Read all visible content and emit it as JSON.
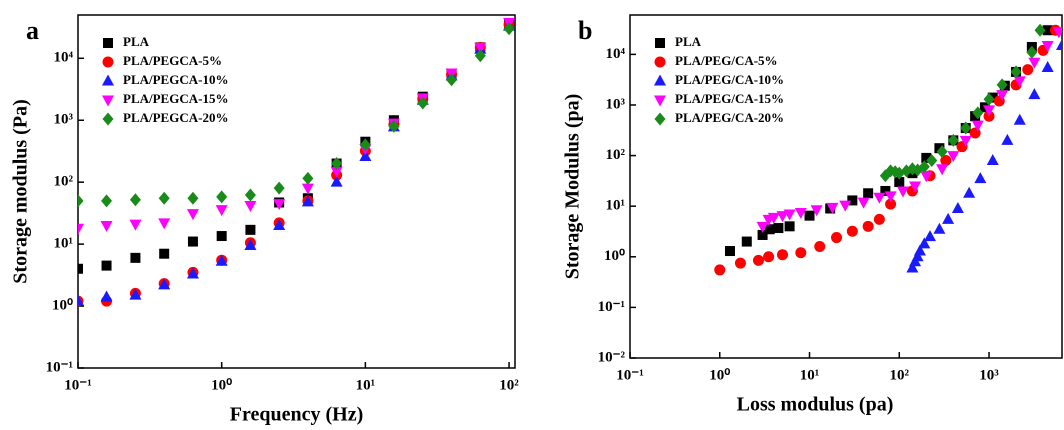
{
  "chart_data": [
    {
      "type": "scatter",
      "label": "a",
      "x_label": "Frequency (Hz)",
      "y_label": "Storage modulus (Pa)",
      "x_scale": "log",
      "y_scale": "log",
      "legend": "upper-left",
      "xlim": [
        0.1,
        110
      ],
      "ylim": [
        0.1,
        50000
      ],
      "xticks": [
        {
          "value": 0.1,
          "label": "10⁻¹"
        },
        {
          "value": 1,
          "label": "10⁰"
        },
        {
          "value": 10,
          "label": "10¹"
        },
        {
          "value": 100,
          "label": "10²"
        }
      ],
      "yticks": [
        {
          "value": 0.1,
          "label": "10⁻¹"
        },
        {
          "value": 1,
          "label": "10⁰"
        },
        {
          "value": 10,
          "label": "10¹"
        },
        {
          "value": 100,
          "label": "10²"
        },
        {
          "value": 1000,
          "label": "10³"
        },
        {
          "value": 10000,
          "label": "10⁴"
        }
      ],
      "x": [
        0.1,
        0.158,
        0.251,
        0.398,
        0.631,
        1,
        1.585,
        2.512,
        3.98,
        6.31,
        10,
        15.8,
        25.1,
        39.8,
        63.1,
        100
      ],
      "series": [
        {
          "name": "PLA",
          "color": "#000000",
          "marker": "square",
          "values": [
            4,
            4.5,
            6,
            7,
            11,
            13.5,
            17,
            47,
            55,
            200,
            450,
            1000,
            2400,
            5500,
            15000,
            35000
          ]
        },
        {
          "name": "PLA/PEGCA-5%",
          "color": "#ff0000",
          "marker": "circle",
          "values": [
            1.2,
            1.2,
            1.6,
            2.3,
            3.5,
            5.5,
            10.5,
            22,
            50,
            130,
            320,
            850,
            2200,
            5500,
            15000,
            35000
          ]
        },
        {
          "name": "PLA/PEGCA-10%",
          "color": "#1a1aff",
          "marker": "triangle-up",
          "values": [
            1.2,
            1.4,
            1.5,
            2.2,
            3.3,
            5.3,
            9.5,
            20,
            48,
            100,
            260,
            780,
            2100,
            5200,
            14000,
            33000
          ]
        },
        {
          "name": "PLA/PEGCA-15%",
          "color": "#ff00ff",
          "marker": "triangle-down",
          "values": [
            18,
            20,
            21,
            22,
            31,
            36,
            42,
            45,
            80,
            150,
            350,
            900,
            2300,
            5800,
            15000,
            38000
          ]
        },
        {
          "name": "PLA/PEGCA-20%",
          "color": "#1a8a1a",
          "marker": "diamond",
          "values": [
            50,
            50,
            52,
            55,
            55,
            58,
            62,
            80,
            115,
            200,
            400,
            800,
            1900,
            4500,
            11000,
            30000
          ]
        }
      ]
    },
    {
      "type": "scatter",
      "label": "b",
      "x_label": "Loss modulus (pa)",
      "y_label": "Storage Modulus (pa)",
      "x_scale": "log",
      "y_scale": "log",
      "legend": "upper-left",
      "xlim": [
        0.1,
        6500
      ],
      "ylim": [
        0.01,
        60000
      ],
      "xticks": [
        {
          "value": 0.1,
          "label": "10⁻¹"
        },
        {
          "value": 1,
          "label": "10⁰"
        },
        {
          "value": 10,
          "label": "10¹"
        },
        {
          "value": 100,
          "label": "10²"
        },
        {
          "value": 1000,
          "label": "10³"
        }
      ],
      "yticks": [
        {
          "value": 0.01,
          "label": "10⁻²"
        },
        {
          "value": 0.1,
          "label": "10⁻¹"
        },
        {
          "value": 1,
          "label": "10⁰"
        },
        {
          "value": 10,
          "label": "10¹"
        },
        {
          "value": 100,
          "label": "10²"
        },
        {
          "value": 1000,
          "label": "10³"
        },
        {
          "value": 10000,
          "label": "10⁴"
        }
      ],
      "series": [
        {
          "name": "PLA",
          "color": "#000000",
          "marker": "square",
          "x": [
            1.3,
            2,
            3,
            3.6,
            4.5,
            6,
            10,
            17,
            30,
            45,
            70,
            100,
            140,
            200,
            280,
            400,
            550,
            700,
            900,
            1100,
            1500,
            2000,
            3000,
            4500
          ],
          "values": [
            1.3,
            2,
            2.7,
            3.5,
            3.7,
            4,
            6.5,
            9,
            13,
            18,
            20,
            30,
            45,
            90,
            140,
            200,
            350,
            600,
            900,
            1400,
            2400,
            4500,
            14000,
            30000
          ]
        },
        {
          "name": "PLA/PEG/CA-5%",
          "color": "#ff0000",
          "marker": "circle",
          "x": [
            1,
            1.7,
            2.7,
            3.5,
            5,
            8,
            13,
            20,
            30,
            45,
            60,
            80,
            140,
            220,
            330,
            500,
            700,
            1000,
            1300,
            2000,
            2700,
            4000,
            5500
          ],
          "values": [
            0.55,
            0.75,
            0.85,
            1,
            1.1,
            1.2,
            1.6,
            2.4,
            3.2,
            4,
            5.5,
            11,
            20,
            40,
            80,
            150,
            280,
            600,
            1200,
            2500,
            5000,
            12000,
            30000
          ]
        },
        {
          "name": "PLA/PEG/CA-10%",
          "color": "#1a1aff",
          "marker": "triangle-up",
          "x": [
            140,
            150,
            160,
            170,
            190,
            220,
            280,
            350,
            450,
            600,
            800,
            1100,
            1600,
            2200,
            3200,
            4500,
            6500
          ],
          "values": [
            0.6,
            0.8,
            1,
            1.3,
            1.8,
            2.5,
            3.5,
            5.5,
            9,
            18,
            35,
            80,
            200,
            500,
            1600,
            5500,
            15000
          ]
        },
        {
          "name": "PLA/PEG/CA-15%",
          "color": "#ff00ff",
          "marker": "triangle-down",
          "x": [
            3,
            3.5,
            4,
            5,
            6,
            8,
            12,
            18,
            25,
            40,
            60,
            80,
            110,
            150,
            200,
            300,
            400,
            550,
            750,
            1000,
            1400,
            2200,
            3200,
            4500,
            6000
          ],
          "values": [
            4,
            5.5,
            6,
            6.5,
            7,
            7.5,
            8.5,
            9.5,
            10.5,
            12,
            15,
            16,
            20,
            25,
            40,
            55,
            100,
            200,
            400,
            800,
            1600,
            3000,
            7000,
            15000,
            28000
          ]
        },
        {
          "name": "PLA/PEG/CA-20%",
          "color": "#1a8a1a",
          "marker": "diamond",
          "x": [
            70,
            80,
            90,
            100,
            120,
            140,
            160,
            190,
            230,
            300,
            400,
            550,
            750,
            1000,
            1400,
            2000,
            3000,
            3700
          ],
          "values": [
            40,
            50,
            48,
            45,
            50,
            55,
            52,
            60,
            80,
            120,
            200,
            350,
            700,
            1300,
            2500,
            4500,
            11000,
            30000
          ]
        }
      ]
    }
  ]
}
